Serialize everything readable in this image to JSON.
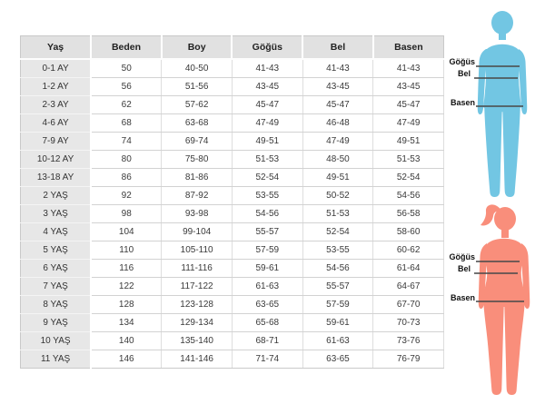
{
  "chart_data": {
    "type": "table",
    "columns": [
      "Yaş",
      "Beden",
      "Boy",
      "Göğüs",
      "Bel",
      "Basen"
    ],
    "rows": [
      [
        "0-1 AY",
        "50",
        "40-50",
        "41-43",
        "41-43",
        "41-43"
      ],
      [
        "1-2 AY",
        "56",
        "51-56",
        "43-45",
        "43-45",
        "43-45"
      ],
      [
        "2-3 AY",
        "62",
        "57-62",
        "45-47",
        "45-47",
        "45-47"
      ],
      [
        "4-6 AY",
        "68",
        "63-68",
        "47-49",
        "46-48",
        "47-49"
      ],
      [
        "7-9 AY",
        "74",
        "69-74",
        "49-51",
        "47-49",
        "49-51"
      ],
      [
        "10-12 AY",
        "80",
        "75-80",
        "51-53",
        "48-50",
        "51-53"
      ],
      [
        "13-18 AY",
        "86",
        "81-86",
        "52-54",
        "49-51",
        "52-54"
      ],
      [
        "2 YAŞ",
        "92",
        "87-92",
        "53-55",
        "50-52",
        "54-56"
      ],
      [
        "3 YAŞ",
        "98",
        "93-98",
        "54-56",
        "51-53",
        "56-58"
      ],
      [
        "4 YAŞ",
        "104",
        "99-104",
        "55-57",
        "52-54",
        "58-60"
      ],
      [
        "5 YAŞ",
        "110",
        "105-110",
        "57-59",
        "53-55",
        "60-62"
      ],
      [
        "6 YAŞ",
        "116",
        "111-116",
        "59-61",
        "54-56",
        "61-64"
      ],
      [
        "7 YAŞ",
        "122",
        "117-122",
        "61-63",
        "55-57",
        "64-67"
      ],
      [
        "8 YAŞ",
        "128",
        "123-128",
        "63-65",
        "57-59",
        "67-70"
      ],
      [
        "9 YAŞ",
        "134",
        "129-134",
        "65-68",
        "59-61",
        "70-73"
      ],
      [
        "10 YAŞ",
        "140",
        "135-140",
        "68-71",
        "61-63",
        "73-76"
      ],
      [
        "11 YAŞ",
        "146",
        "141-146",
        "71-74",
        "63-65",
        "76-79"
      ]
    ]
  },
  "figures": {
    "male": {
      "color": "#72c6e3",
      "labels": {
        "chest": "Göğüs",
        "waist": "Bel",
        "hips": "Basen"
      }
    },
    "female": {
      "color": "#f98e7b",
      "labels": {
        "chest": "Göğüs",
        "waist": "Bel",
        "hips": "Basen"
      }
    }
  },
  "colors": {
    "header_bg": "#e1e1e1",
    "row_header_bg": "#e7e7e7",
    "measure_line": "#4c4c4c"
  }
}
